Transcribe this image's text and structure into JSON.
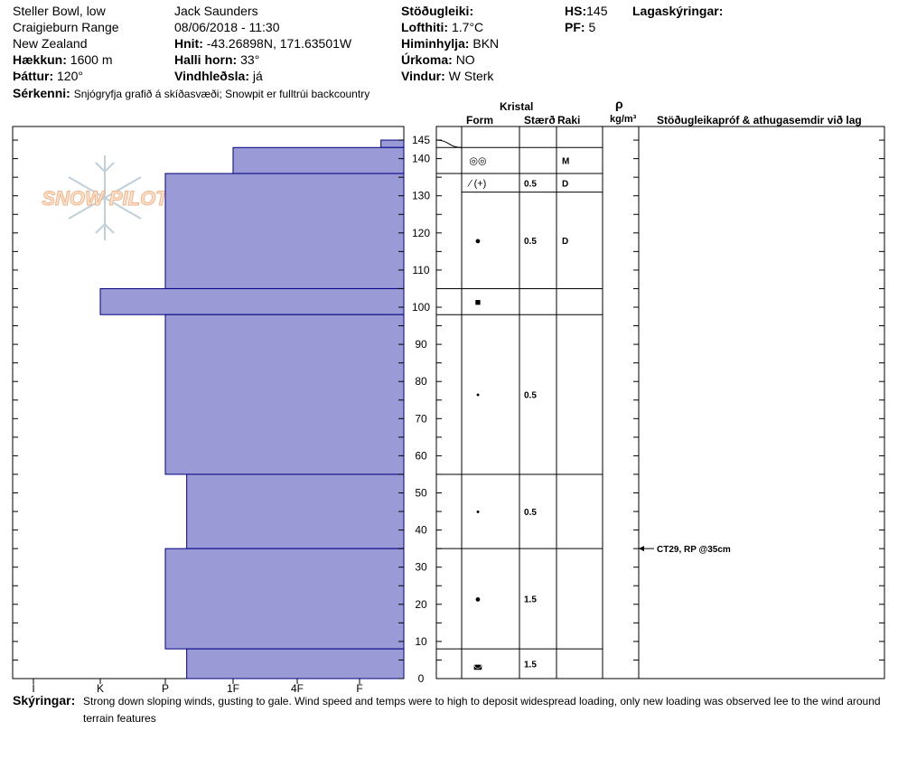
{
  "header": {
    "location": "Steller Bowl, low",
    "range": "Craigieburn Range",
    "country": "New Zealand",
    "elevation_label": "Hækkun:",
    "elevation": "1600 m",
    "aspect_label": "Þáttur:",
    "aspect": "120°",
    "observer": "Jack Saunders",
    "datetime": "08/06/2018 - 11:30",
    "coords_label": "Hnit:",
    "coords": "-43.26898N, 171.63501W",
    "slope_label": "Halli horn:",
    "slope": "33°",
    "windload_label": "Vindhleðsla:",
    "windload": "já",
    "stability_label": "Stöðugleiki:",
    "stability": "",
    "airtemp_label": "Lofthiti:",
    "airtemp": "1.7°C",
    "sky_label": "Himinhylja:",
    "sky": "BKN",
    "precip_label": "Úrkoma:",
    "precip": "NO",
    "wind_label": "Vindur:",
    "wind": "W Sterk",
    "hs_label": "HS:",
    "hs": "145",
    "pf_label": "PF:",
    "pf": "5",
    "layer_notes_label": "Lagaskýringar:",
    "features_label": "Sérkenni:",
    "features": "Snjógryfja grafið á skíðasvæði; Snowpit er fulltrúi backcountry"
  },
  "logo_text": "SNOW PILOT",
  "columns": {
    "crystal": "Kristal",
    "form": "Form",
    "size": "Stærð",
    "moisture": "Raki",
    "rho": "ρ",
    "density_unit": "kg/m³",
    "stability_tests": "Stöðugleikapróf & athugasemdir við lag"
  },
  "footer": {
    "notes_label": "Skýringar:",
    "notes_line1": "Strong down sloping winds, gusting to gale. Wind speed and temps were to high to deposit widespread loading, only new loading was observed lee to the wind around",
    "notes_line2": "terrain features"
  },
  "colors": {
    "layer_fill": "#9a9ad6",
    "layer_edge": "#000080"
  },
  "chart_data": {
    "type": "bar",
    "orientation": "horizontal",
    "title": "",
    "x_categories": [
      "I",
      "K",
      "P",
      "1F",
      "4F",
      "F"
    ],
    "y_ticks": [
      0,
      10,
      20,
      30,
      40,
      50,
      60,
      70,
      80,
      90,
      100,
      110,
      120,
      130,
      140,
      145
    ],
    "ylim": [
      0,
      145
    ],
    "layers": [
      {
        "bottom": 143,
        "top": 145,
        "hardness": "F+"
      },
      {
        "bottom": 136,
        "top": 143,
        "hardness": "1F",
        "form": "◎◎",
        "size": "",
        "moisture": "M"
      },
      {
        "bottom": 105,
        "top": 136,
        "hardness": "P",
        "form": "⁄ (+)",
        "size": "0.5",
        "moisture": "D"
      },
      {
        "bottom": 98,
        "top": 105,
        "hardness": "K"
      },
      {
        "bottom": 55,
        "top": 98,
        "hardness": "P"
      },
      {
        "bottom": 35,
        "top": 55,
        "hardness": "P+"
      },
      {
        "bottom": 8,
        "top": 35,
        "hardness": "P"
      },
      {
        "bottom": 0,
        "top": 8,
        "hardness": "P+"
      }
    ],
    "crystal_rows": [
      {
        "bottom": 136,
        "top": 143,
        "form": "◎◎",
        "size": "",
        "moisture": "M"
      },
      {
        "bottom": 131,
        "top": 136,
        "form": "⁄ (+)",
        "size": "0.5",
        "moisture": "D"
      },
      {
        "bottom": 105,
        "top": 131,
        "form": "●",
        "size": "0.5",
        "moisture": "D"
      },
      {
        "bottom": 98,
        "top": 105,
        "form": "■",
        "size": "",
        "moisture": ""
      },
      {
        "bottom": 55,
        "top": 98,
        "form": "•",
        "size": "0.5",
        "moisture": ""
      },
      {
        "bottom": 35,
        "top": 55,
        "form": "•",
        "size": "0.5",
        "moisture": ""
      },
      {
        "bottom": 8,
        "top": 35,
        "form": "●",
        "size": "1.5",
        "moisture": ""
      },
      {
        "bottom": 0,
        "top": 8,
        "form": "◛",
        "size": "1.5",
        "moisture": ""
      }
    ],
    "tests": [
      {
        "depth": 35,
        "text": "CT29, RP @35cm"
      }
    ]
  }
}
